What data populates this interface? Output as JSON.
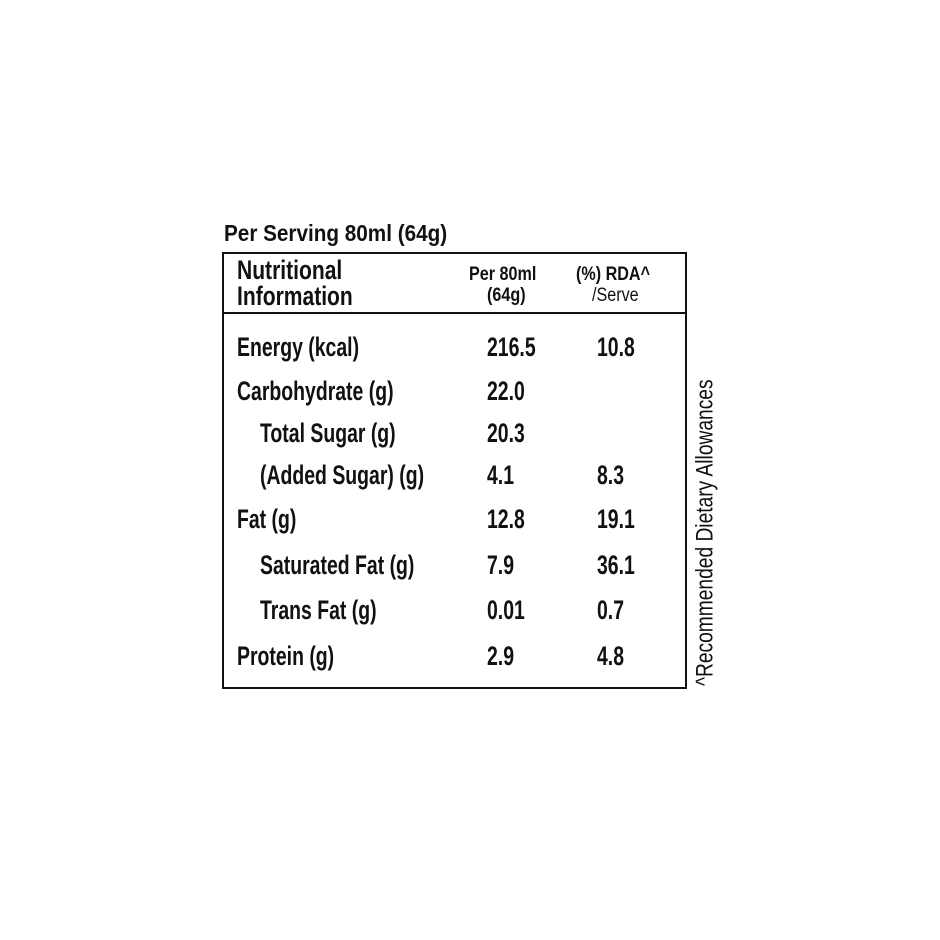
{
  "title": "Per Serving 80ml (64g)",
  "table": {
    "header": [
      [
        "Nutritional",
        "Information"
      ],
      [
        "Per 80ml",
        "(64g)"
      ],
      [
        "(%) RDA^",
        "/Serve"
      ]
    ],
    "rows": [
      [
        "Energy (kcal)",
        "216.5",
        "10.8"
      ],
      [
        "Carbohydrate (g)",
        "22.0"
      ],
      [
        "Total Sugar (g)",
        "20.3"
      ],
      [
        "(Added Sugar) (g)",
        "4.1",
        "8.3"
      ],
      [
        "Fat (g)",
        "12.8",
        "19.1"
      ],
      [
        "Saturated Fat (g)",
        "7.9",
        "36.1"
      ],
      [
        "Trans Fat (g)",
        "0.01",
        "0.7"
      ],
      [
        "Protein (g)",
        "2.9",
        "4.8"
      ]
    ]
  },
  "footnote": "^Recommended Dietary Allowances"
}
